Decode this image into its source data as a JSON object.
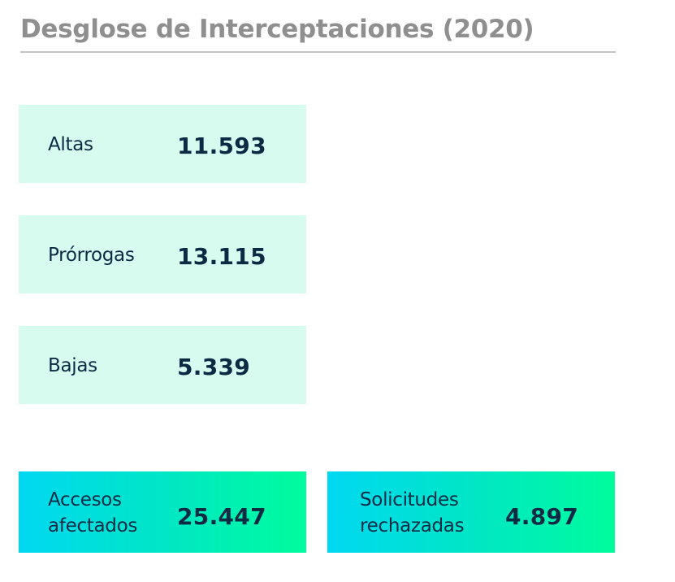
{
  "title": "Desglose de Interceptaciones (2020)",
  "stats": [
    {
      "label": "Altas",
      "value": "11.593"
    },
    {
      "label": "Prórrogas",
      "value": "13.115"
    },
    {
      "label": "Bajas",
      "value": "5.339"
    }
  ],
  "totals": [
    {
      "label_line1": "Accesos",
      "label_line2": "afectados",
      "value": "25.447"
    },
    {
      "label_line1": "Solicitudes",
      "label_line2": "rechazadas",
      "value": "4.897"
    }
  ],
  "colors": {
    "title": "#8f8f8f",
    "title_rule": "#c4c4c4",
    "text": "#0b2b45",
    "card_background": "#d8fbef",
    "gradient_start": "#00d8f2",
    "gradient_end": "#00fc9c"
  }
}
